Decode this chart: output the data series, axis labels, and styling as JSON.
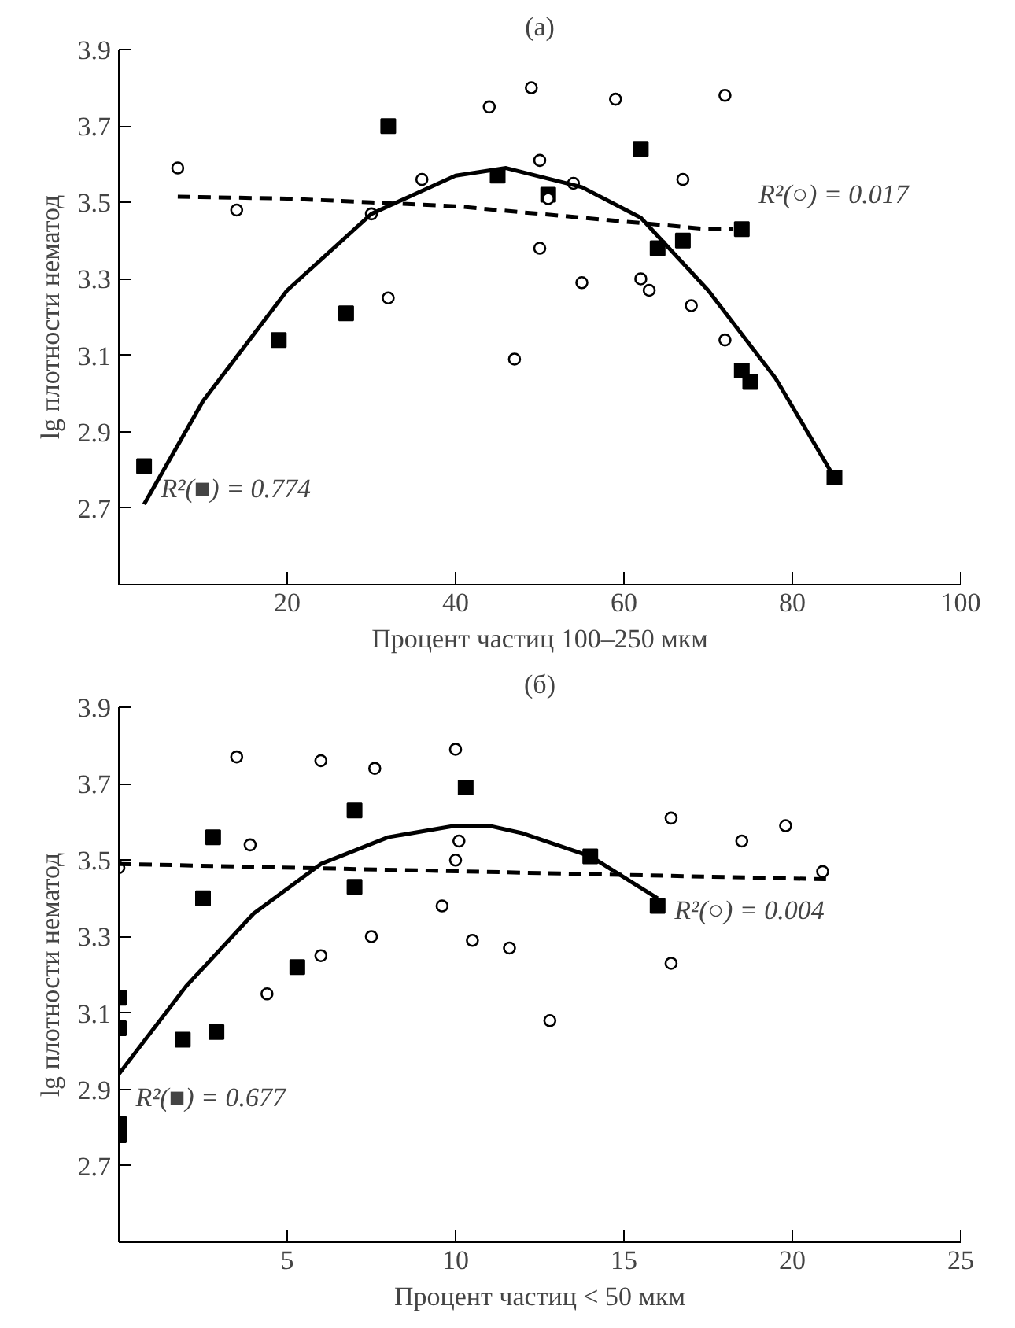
{
  "chart_data": [
    {
      "type": "scatter",
      "title": "(a)",
      "xlabel": "Процент частиц 100–250 мкм",
      "ylabel": "lg плотности нематод",
      "xlim": [
        0,
        100
      ],
      "xticks": [
        20,
        40,
        60,
        80,
        100
      ],
      "ylim": [
        2.5,
        3.9
      ],
      "yticks": [
        2.7,
        2.9,
        3.1,
        3.3,
        3.5,
        3.7,
        3.9
      ],
      "grid": false,
      "series": [
        {
          "marker": "square",
          "color": "#000000",
          "x": [
            3,
            19,
            27,
            32,
            45,
            51,
            62,
            64,
            67,
            74,
            74,
            75,
            85
          ],
          "values": [
            2.81,
            3.14,
            3.21,
            3.7,
            3.57,
            3.52,
            3.64,
            3.38,
            3.4,
            3.43,
            3.06,
            3.03,
            2.78
          ]
        },
        {
          "marker": "circle",
          "color": "#000000",
          "x": [
            7,
            14,
            30,
            32,
            36,
            44,
            47,
            49,
            50,
            50,
            51,
            54,
            55,
            59,
            62,
            63,
            67,
            68,
            72,
            72
          ],
          "values": [
            3.59,
            3.48,
            3.47,
            3.25,
            3.56,
            3.75,
            3.09,
            3.8,
            3.61,
            3.38,
            3.51,
            3.55,
            3.29,
            3.77,
            3.3,
            3.27,
            3.56,
            3.23,
            3.78,
            3.14
          ]
        },
        {
          "type": "line",
          "line_style": "solid",
          "color": "#000000",
          "x": [
            3,
            10,
            20,
            30,
            40,
            46,
            55,
            62,
            70,
            78,
            85
          ],
          "values": [
            2.71,
            2.98,
            3.27,
            3.47,
            3.57,
            3.59,
            3.54,
            3.46,
            3.27,
            3.04,
            2.78
          ]
        },
        {
          "type": "line",
          "line_style": "dashed",
          "color": "#000000",
          "x": [
            7,
            20,
            30,
            40,
            50,
            60,
            70,
            73
          ],
          "values": [
            3.515,
            3.51,
            3.5,
            3.49,
            3.47,
            3.45,
            3.43,
            3.43
          ]
        }
      ],
      "annotations": [
        "R²(■) = 0.774",
        "R²(○) = 0.017"
      ]
    },
    {
      "type": "scatter",
      "title": "(б)",
      "xlabel": "Процент частиц < 50 мкм",
      "ylabel": "lg плотности нематод",
      "xlim": [
        0,
        25
      ],
      "xticks": [
        5,
        10,
        15,
        20,
        25
      ],
      "ylim": [
        2.5,
        3.9
      ],
      "yticks": [
        2.7,
        2.9,
        3.1,
        3.3,
        3.5,
        3.7,
        3.9
      ],
      "grid": false,
      "series": [
        {
          "marker": "square",
          "color": "#000000",
          "x": [
            0,
            0,
            0,
            0,
            1.9,
            2.5,
            2.8,
            2.9,
            5.3,
            7,
            7,
            10.3,
            14,
            16
          ],
          "values": [
            3.14,
            3.06,
            2.81,
            2.78,
            3.03,
            3.4,
            3.56,
            3.05,
            3.22,
            3.63,
            3.43,
            3.69,
            3.51,
            3.38
          ]
        },
        {
          "marker": "circle",
          "color": "#000000",
          "x": [
            0,
            3.5,
            3.9,
            4.4,
            6,
            6,
            7.5,
            7.6,
            9.6,
            10,
            10,
            10.1,
            10.5,
            11.6,
            12.8,
            16.4,
            16.4,
            18.5,
            19.8,
            20.9
          ],
          "values": [
            3.48,
            3.77,
            3.54,
            3.15,
            3.76,
            3.25,
            3.3,
            3.74,
            3.38,
            3.79,
            3.5,
            3.55,
            3.29,
            3.27,
            3.08,
            3.61,
            3.23,
            3.55,
            3.59,
            3.47
          ]
        },
        {
          "type": "line",
          "line_style": "solid",
          "color": "#000000",
          "x": [
            0,
            2,
            4,
            6,
            8,
            10,
            11,
            12,
            14,
            16
          ],
          "values": [
            2.94,
            3.17,
            3.36,
            3.49,
            3.56,
            3.59,
            3.59,
            3.57,
            3.51,
            3.4
          ]
        },
        {
          "type": "line",
          "line_style": "dashed",
          "color": "#000000",
          "x": [
            0,
            21
          ],
          "values": [
            3.49,
            3.45
          ]
        }
      ],
      "annotations": [
        "R²(■) = 0.677",
        "R²(○) = 0.004"
      ]
    }
  ]
}
